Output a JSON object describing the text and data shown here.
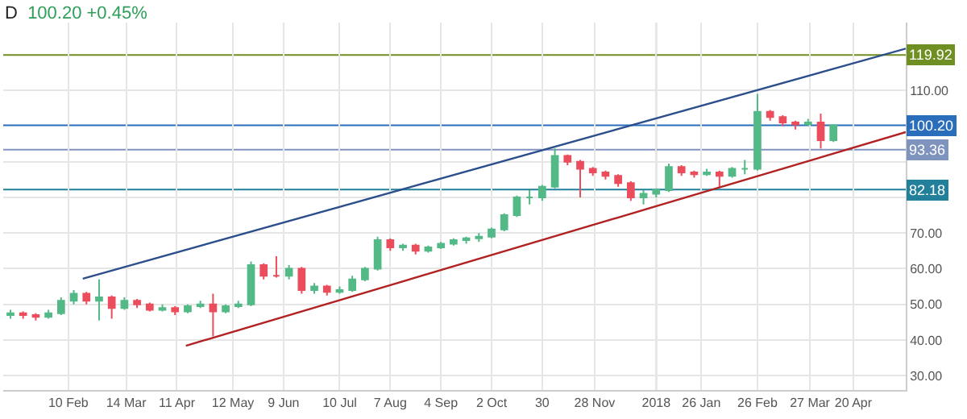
{
  "chart_data": {
    "type": "candlestick",
    "title": "D",
    "subtitle": "100.20 +0.45%",
    "x": [
      "2017-01-09",
      "2017-01-16",
      "2017-01-23",
      "2017-01-30",
      "2017-02-06",
      "2017-02-13",
      "2017-02-20",
      "2017-02-27",
      "2017-03-06",
      "2017-03-13",
      "2017-03-20",
      "2017-03-27",
      "2017-04-03",
      "2017-04-10",
      "2017-04-17",
      "2017-04-24",
      "2017-05-01",
      "2017-05-08",
      "2017-05-15",
      "2017-05-22",
      "2017-05-29",
      "2017-06-05",
      "2017-06-12",
      "2017-06-19",
      "2017-06-26",
      "2017-07-03",
      "2017-07-10",
      "2017-07-17",
      "2017-07-24",
      "2017-07-31",
      "2017-08-07",
      "2017-08-14",
      "2017-08-21",
      "2017-08-28",
      "2017-09-04",
      "2017-09-11",
      "2017-09-18",
      "2017-09-25",
      "2017-10-02",
      "2017-10-09",
      "2017-10-16",
      "2017-10-23",
      "2017-10-30",
      "2017-11-06",
      "2017-11-13",
      "2017-11-20",
      "2017-11-27",
      "2017-12-04",
      "2017-12-11",
      "2017-12-18",
      "2017-12-25",
      "2018-01-01",
      "2018-01-08",
      "2018-01-15",
      "2018-01-22",
      "2018-01-29",
      "2018-02-05",
      "2018-02-12",
      "2018-02-19",
      "2018-02-26",
      "2018-03-05",
      "2018-03-12",
      "2018-03-19",
      "2018-03-26",
      "2018-04-02",
      "2018-04-09"
    ],
    "ohlc": [
      [
        47,
        48.5,
        46,
        47.5
      ],
      [
        47.5,
        48,
        46,
        47
      ],
      [
        47,
        47.5,
        45.5,
        46.5
      ],
      [
        46.5,
        48.5,
        46,
        47.5
      ],
      [
        47.5,
        52,
        47,
        51
      ],
      [
        51,
        54,
        50,
        53
      ],
      [
        53,
        53.5,
        50,
        51
      ],
      [
        51,
        57,
        45.5,
        52
      ],
      [
        52,
        52.5,
        46,
        49
      ],
      [
        49,
        52,
        48.5,
        51
      ],
      [
        51,
        51.5,
        49,
        50
      ],
      [
        50,
        50.5,
        48,
        48.5
      ],
      [
        48.5,
        50,
        48,
        49
      ],
      [
        49,
        49.5,
        47,
        48
      ],
      [
        48,
        50,
        47.5,
        49.5
      ],
      [
        49.5,
        51,
        49,
        50
      ],
      [
        50,
        53,
        41,
        48
      ],
      [
        48,
        50,
        47.5,
        49.5
      ],
      [
        49.5,
        51,
        49,
        50
      ],
      [
        50,
        62,
        49.5,
        61
      ],
      [
        61,
        61.5,
        57,
        58
      ],
      [
        58,
        63.5,
        57.5,
        58
      ],
      [
        58,
        61,
        57,
        60
      ],
      [
        60,
        60.5,
        53,
        54
      ],
      [
        54,
        56,
        53,
        55
      ],
      [
        55,
        55.5,
        52.5,
        53.5
      ],
      [
        53.5,
        55,
        53,
        54
      ],
      [
        54,
        58,
        53.5,
        57
      ],
      [
        57,
        60.5,
        56.5,
        60
      ],
      [
        60,
        69,
        59.5,
        68
      ],
      [
        68,
        68.5,
        65,
        66
      ],
      [
        66,
        67,
        65,
        66.5
      ],
      [
        66.5,
        67,
        64,
        65
      ],
      [
        65,
        66.5,
        64.5,
        66
      ],
      [
        66,
        67.5,
        65.5,
        67
      ],
      [
        67,
        68.5,
        66.5,
        68
      ],
      [
        68,
        69,
        67,
        68.5
      ],
      [
        68.5,
        70,
        67.5,
        69
      ],
      [
        69,
        71.5,
        68.5,
        71
      ],
      [
        71,
        75.5,
        70.5,
        75
      ],
      [
        75,
        80.5,
        74.5,
        80
      ],
      [
        80,
        82,
        78,
        80
      ],
      [
        80,
        83.5,
        79,
        83
      ],
      [
        83,
        93.7,
        82.5,
        91.6
      ],
      [
        91.6,
        92,
        89,
        90
      ],
      [
        90,
        90.5,
        80,
        88
      ],
      [
        88,
        88.5,
        86,
        87
      ],
      [
        87,
        87.5,
        85,
        86
      ],
      [
        86,
        86.5,
        83,
        84
      ],
      [
        84,
        84.5,
        79,
        80
      ],
      [
        80,
        82,
        78,
        81
      ],
      [
        81,
        82.5,
        80,
        82
      ],
      [
        82,
        89.5,
        81.5,
        88.5
      ],
      [
        88.5,
        89,
        86,
        87
      ],
      [
        87,
        87.5,
        85.5,
        86.5
      ],
      [
        86.5,
        88,
        86,
        87
      ],
      [
        87,
        87.5,
        83,
        86
      ],
      [
        86,
        88.5,
        85.5,
        88
      ],
      [
        88,
        90.5,
        86.5,
        88
      ],
      [
        88,
        109,
        87.5,
        104
      ],
      [
        104,
        104.5,
        101.5,
        102.5
      ],
      [
        102.5,
        103,
        100,
        101
      ],
      [
        101,
        101.5,
        99,
        100.5
      ],
      [
        100.5,
        102,
        100,
        101
      ],
      [
        101,
        103.5,
        93.7,
        96
      ],
      [
        96,
        100.5,
        95.5,
        100.2
      ]
    ],
    "series": [
      {
        "type": "line",
        "color": "#2c4f8c",
        "x": [
          "2017-02-18",
          "2018-05-19"
        ],
        "values": [
          57.2,
          121.7
        ]
      },
      {
        "type": "line",
        "color": "#b22222",
        "x": [
          "2017-04-16",
          "2018-05-19"
        ],
        "values": [
          38.4,
          98.3
        ]
      }
    ],
    "ref_lines": [
      {
        "axis": "y",
        "value": 119.92,
        "label": "119.92",
        "color": "#6f8f22"
      },
      {
        "axis": "y",
        "value": 100.2,
        "label": "100.20",
        "color": "#2a6ebb"
      },
      {
        "axis": "y",
        "value": 93.36,
        "label": "93.36",
        "color": "#7f93bf"
      },
      {
        "axis": "y",
        "value": 82.18,
        "label": "82.18",
        "color": "#23809a"
      },
      {
        "axis": "x",
        "value": "2018-01-01",
        "label": null,
        "color": "#aaaaaa"
      }
    ],
    "xlim": [
      "2017-01-05",
      "2018-05-19"
    ],
    "xticks": [
      {
        "value": "2017-02-10",
        "label": "10 Feb"
      },
      {
        "value": "2017-03-14",
        "label": "14 Mar"
      },
      {
        "value": "2017-04-11",
        "label": "11 Apr"
      },
      {
        "value": "2017-05-12",
        "label": "12 May"
      },
      {
        "value": "2017-06-09",
        "label": "9 Jun"
      },
      {
        "value": "2017-07-10",
        "label": "10 Jul"
      },
      {
        "value": "2017-08-07",
        "label": "7 Aug"
      },
      {
        "value": "2017-09-04",
        "label": "4 Sep"
      },
      {
        "value": "2017-10-02",
        "label": "2 Oct"
      },
      {
        "value": "2017-10-30",
        "label": "30"
      },
      {
        "value": "2017-11-28",
        "label": "28 Nov"
      },
      {
        "value": "2018-01-01",
        "label": "2018"
      },
      {
        "value": "2018-01-26",
        "label": "26 Jan"
      },
      {
        "value": "2018-02-26",
        "label": "26 Feb"
      },
      {
        "value": "2018-03-27",
        "label": "27 Mar"
      },
      {
        "value": "2018-04-20",
        "label": "20 Apr"
      }
    ],
    "ylim": [
      26,
      129
    ],
    "yticks": [
      {
        "value": 30,
        "label": "30.00"
      },
      {
        "value": 40,
        "label": "40.00"
      },
      {
        "value": 50,
        "label": "50.00"
      },
      {
        "value": 60,
        "label": "60.00"
      },
      {
        "value": 70,
        "label": "70.00"
      },
      {
        "value": 80,
        "label": null
      },
      {
        "value": 90,
        "label": null
      },
      {
        "value": 110,
        "label": "110.00"
      }
    ],
    "grid": true
  }
}
